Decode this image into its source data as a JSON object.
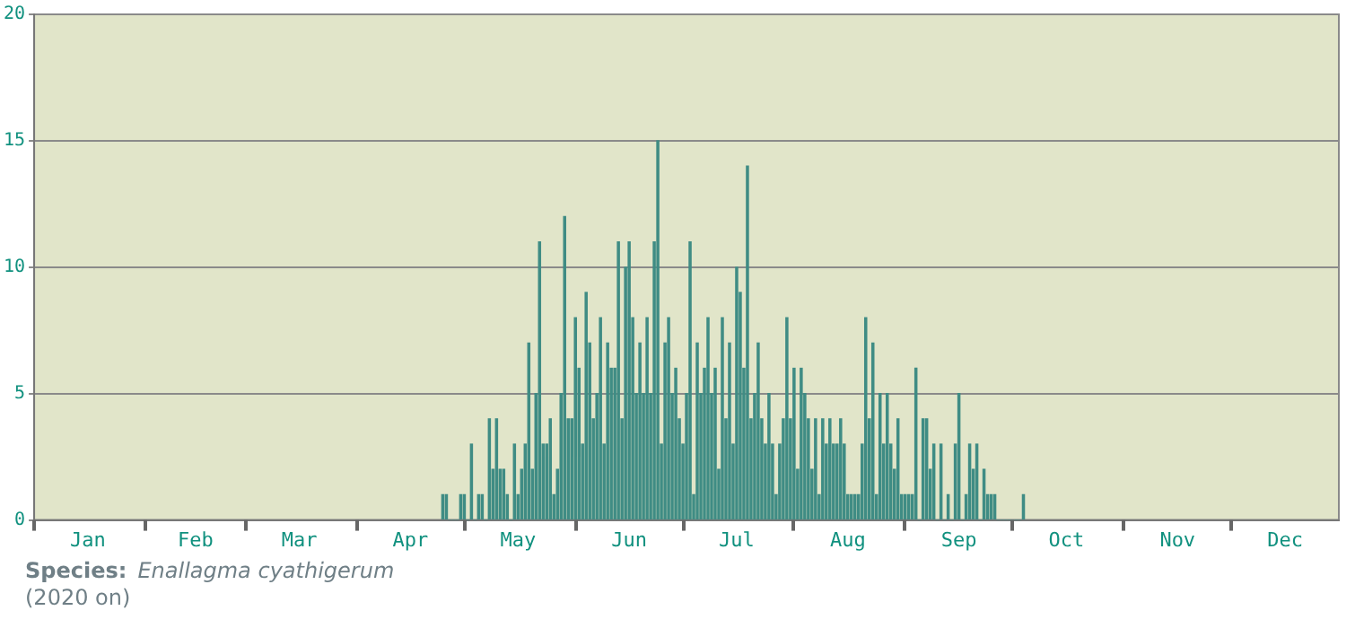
{
  "chart_data": {
    "type": "bar",
    "x": [
      "--04-25",
      "--04-26",
      "--04-27",
      "--04-28",
      "--04-29",
      "--04-30",
      "--05-01",
      "--05-02",
      "--05-03",
      "--05-04",
      "--05-05",
      "--05-06",
      "--05-07",
      "--05-08",
      "--05-09",
      "--05-10",
      "--05-11",
      "--05-12",
      "--05-13",
      "--05-14",
      "--05-15",
      "--05-16",
      "--05-17",
      "--05-18",
      "--05-19",
      "--05-20",
      "--05-21",
      "--05-22",
      "--05-23",
      "--05-24",
      "--05-25",
      "--05-26",
      "--05-27",
      "--05-28",
      "--05-29",
      "--05-30",
      "--05-31",
      "--06-01",
      "--06-02",
      "--06-03",
      "--06-04",
      "--06-05",
      "--06-06",
      "--06-07",
      "--06-08",
      "--06-09",
      "--06-10",
      "--06-11",
      "--06-12",
      "--06-13",
      "--06-14",
      "--06-15",
      "--06-16",
      "--06-17",
      "--06-18",
      "--06-19",
      "--06-20",
      "--06-21",
      "--06-22",
      "--06-23",
      "--06-24",
      "--06-25",
      "--06-26",
      "--06-27",
      "--06-28",
      "--06-29",
      "--06-30",
      "--07-01",
      "--07-02",
      "--07-03",
      "--07-04",
      "--07-05",
      "--07-06",
      "--07-07",
      "--07-08",
      "--07-09",
      "--07-10",
      "--07-11",
      "--07-12",
      "--07-13",
      "--07-14",
      "--07-15",
      "--07-16",
      "--07-17",
      "--07-18",
      "--07-19",
      "--07-20",
      "--07-21",
      "--07-22",
      "--07-23",
      "--07-24",
      "--07-25",
      "--07-26",
      "--07-27",
      "--07-28",
      "--07-29",
      "--07-30",
      "--07-31",
      "--08-01",
      "--08-02",
      "--08-03",
      "--08-04",
      "--08-05",
      "--08-06",
      "--08-07",
      "--08-08",
      "--08-09",
      "--08-10",
      "--08-11",
      "--08-12",
      "--08-13",
      "--08-14",
      "--08-15",
      "--08-16",
      "--08-17",
      "--08-18",
      "--08-19",
      "--08-20",
      "--08-21",
      "--08-22",
      "--08-23",
      "--08-24",
      "--08-25",
      "--08-26",
      "--08-27",
      "--08-28",
      "--08-29",
      "--08-30",
      "--08-31",
      "--09-01",
      "--09-02",
      "--09-03",
      "--09-04",
      "--09-05",
      "--09-06",
      "--09-07",
      "--09-08",
      "--09-09",
      "--09-10",
      "--09-11",
      "--09-12",
      "--09-13",
      "--09-14",
      "--09-15",
      "--09-16",
      "--09-17",
      "--09-18",
      "--09-19",
      "--09-20",
      "--09-21",
      "--09-22",
      "--09-23",
      "--09-24",
      "--09-25",
      "--09-26",
      "--09-27",
      "--09-28",
      "--09-29",
      "--09-30",
      "--10-01",
      "--10-02",
      "--10-03",
      "--10-04"
    ],
    "values": [
      1,
      1,
      0,
      0,
      0,
      1,
      1,
      0,
      3,
      0,
      1,
      1,
      0,
      4,
      2,
      4,
      2,
      2,
      1,
      0,
      3,
      1,
      2,
      3,
      7,
      2,
      5,
      11,
      3,
      3,
      4,
      1,
      2,
      5,
      12,
      4,
      4,
      8,
      6,
      3,
      9,
      7,
      4,
      5,
      8,
      3,
      7,
      6,
      6,
      11,
      4,
      10,
      11,
      8,
      5,
      7,
      5,
      8,
      5,
      11,
      15,
      3,
      7,
      8,
      5,
      6,
      4,
      3,
      5,
      11,
      1,
      7,
      5,
      6,
      8,
      5,
      6,
      2,
      8,
      4,
      7,
      3,
      10,
      9,
      6,
      14,
      4,
      5,
      7,
      4,
      3,
      5,
      3,
      1,
      3,
      4,
      8,
      4,
      6,
      2,
      6,
      5,
      4,
      2,
      4,
      1,
      4,
      3,
      4,
      3,
      3,
      4,
      3,
      1,
      1,
      1,
      1,
      3,
      8,
      4,
      7,
      1,
      5,
      3,
      5,
      3,
      2,
      4,
      1,
      1,
      1,
      1,
      6,
      0,
      4,
      4,
      2,
      3,
      0,
      3,
      0,
      1,
      0,
      3,
      5,
      0,
      1,
      3,
      2,
      3,
      0,
      2,
      1,
      1,
      1,
      0,
      0,
      0,
      0,
      0,
      0,
      0,
      1
    ],
    "color": "#3f8c84",
    "xlim": [
      "--01-01",
      "--12-31"
    ],
    "xticks": [
      {
        "value": "--01-01",
        "label": null
      },
      {
        "value": "--01-16",
        "label": "Jan"
      },
      {
        "value": "--02-01",
        "label": null
      },
      {
        "value": "--02-15",
        "label": "Feb"
      },
      {
        "value": "--03-01",
        "label": null
      },
      {
        "value": "--03-16",
        "label": "Mar"
      },
      {
        "value": "--04-01",
        "label": null
      },
      {
        "value": "--04-16",
        "label": "Apr"
      },
      {
        "value": "--05-01",
        "label": null
      },
      {
        "value": "--05-16",
        "label": "May"
      },
      {
        "value": "--06-01",
        "label": null
      },
      {
        "value": "--06-16",
        "label": "Jun"
      },
      {
        "value": "--07-01",
        "label": null
      },
      {
        "value": "--07-16",
        "label": "Jul"
      },
      {
        "value": "--08-01",
        "label": null
      },
      {
        "value": "--08-16",
        "label": "Aug"
      },
      {
        "value": "--09-01",
        "label": null
      },
      {
        "value": "--09-16",
        "label": "Sep"
      },
      {
        "value": "--10-01",
        "label": null
      },
      {
        "value": "--10-16",
        "label": "Oct"
      },
      {
        "value": "--11-01",
        "label": null
      },
      {
        "value": "--11-16",
        "label": "Nov"
      },
      {
        "value": "--12-01",
        "label": null
      },
      {
        "value": "--12-16",
        "label": "Dec"
      }
    ],
    "ylim": [
      0,
      20
    ],
    "yticks": [
      0,
      5,
      10,
      15,
      20
    ],
    "grid": "y",
    "annotations": [
      "Species:",
      "Enallagma cyathigerum",
      "(2020 on)"
    ]
  }
}
